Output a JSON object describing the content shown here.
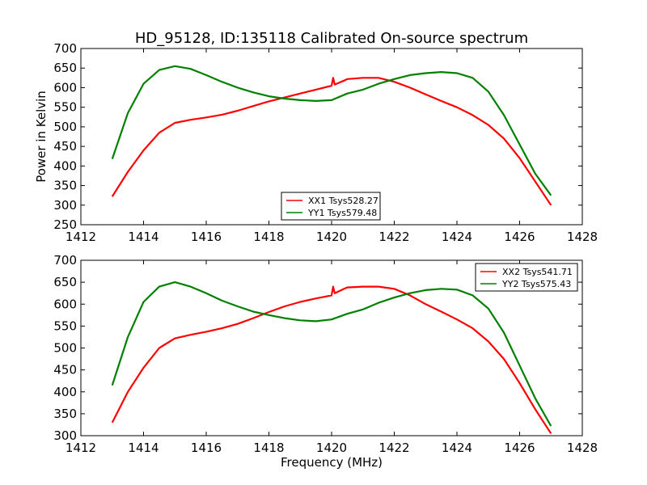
{
  "figure": {
    "title": "HD_95128, ID:135118 Calibrated On-source spectrum",
    "background": "#ffffff"
  },
  "chart_data": [
    {
      "type": "line",
      "title": "HD_95128, ID:135118 Calibrated On-source spectrum",
      "xlabel": "",
      "ylabel": "Power in Kelvin",
      "xlim": [
        1412,
        1428
      ],
      "ylim": [
        250,
        700
      ],
      "xticks": [
        "1412",
        "1414",
        "1416",
        "1418",
        "1420",
        "1422",
        "1424",
        "1426",
        "1428"
      ],
      "yticks": [
        "250",
        "300",
        "350",
        "400",
        "450",
        "500",
        "550",
        "600",
        "650",
        "700"
      ],
      "grid": false,
      "legend_position": "lower-center",
      "series": [
        {
          "name": "XX1 Tsys528.27",
          "color": "#ff0000",
          "x": [
            1413.0,
            1413.5,
            1414.0,
            1414.5,
            1415.0,
            1415.5,
            1416.0,
            1416.5,
            1417.0,
            1417.5,
            1418.0,
            1418.5,
            1419.0,
            1419.5,
            1420.0,
            1420.05,
            1420.1,
            1420.4,
            1420.5,
            1421.0,
            1421.5,
            1422.0,
            1422.5,
            1423.0,
            1423.5,
            1424.0,
            1424.5,
            1425.0,
            1425.5,
            1426.0,
            1426.5,
            1427.0
          ],
          "y": [
            322,
            385,
            440,
            485,
            510,
            518,
            524,
            531,
            541,
            553,
            565,
            575,
            585,
            595,
            605,
            625,
            608,
            618,
            622,
            625,
            625,
            615,
            600,
            583,
            566,
            550,
            530,
            505,
            470,
            420,
            360,
            300
          ]
        },
        {
          "name": "YY1 Tsys579.48",
          "color": "#008000",
          "x": [
            1413.0,
            1413.5,
            1414.0,
            1414.5,
            1415.0,
            1415.5,
            1416.0,
            1416.5,
            1417.0,
            1417.5,
            1418.0,
            1418.5,
            1419.0,
            1419.5,
            1420.0,
            1420.5,
            1421.0,
            1421.5,
            1422.0,
            1422.5,
            1423.0,
            1423.5,
            1424.0,
            1424.5,
            1425.0,
            1425.5,
            1426.0,
            1426.5,
            1427.0
          ],
          "y": [
            418,
            535,
            610,
            645,
            655,
            648,
            632,
            615,
            600,
            588,
            578,
            572,
            568,
            566,
            568,
            585,
            595,
            610,
            622,
            632,
            637,
            640,
            637,
            625,
            590,
            530,
            455,
            380,
            325
          ]
        }
      ]
    },
    {
      "type": "line",
      "title": "",
      "xlabel": "Frequency (MHz)",
      "ylabel": "",
      "xlim": [
        1412,
        1428
      ],
      "ylim": [
        300,
        700
      ],
      "xticks": [
        "1412",
        "1414",
        "1416",
        "1418",
        "1420",
        "1422",
        "1424",
        "1426",
        "1428"
      ],
      "yticks": [
        "300",
        "350",
        "400",
        "450",
        "500",
        "550",
        "600",
        "650",
        "700"
      ],
      "grid": false,
      "legend_position": "top-right",
      "series": [
        {
          "name": "XX2 Tsys541.71",
          "color": "#ff0000",
          "x": [
            1413.0,
            1413.5,
            1414.0,
            1414.5,
            1415.0,
            1415.5,
            1416.0,
            1416.5,
            1417.0,
            1417.5,
            1418.0,
            1418.5,
            1419.0,
            1419.5,
            1420.0,
            1420.05,
            1420.1,
            1420.4,
            1420.5,
            1421.0,
            1421.5,
            1422.0,
            1422.5,
            1423.0,
            1423.5,
            1424.0,
            1424.5,
            1425.0,
            1425.5,
            1426.0,
            1426.5,
            1427.0
          ],
          "y": [
            330,
            400,
            455,
            500,
            522,
            530,
            537,
            545,
            555,
            568,
            582,
            595,
            605,
            613,
            620,
            640,
            625,
            635,
            638,
            640,
            640,
            635,
            620,
            600,
            583,
            565,
            545,
            515,
            475,
            420,
            360,
            305
          ]
        },
        {
          "name": "YY2 Tsys575.43",
          "color": "#008000",
          "x": [
            1413.0,
            1413.5,
            1414.0,
            1414.5,
            1415.0,
            1415.5,
            1416.0,
            1416.5,
            1417.0,
            1417.5,
            1418.0,
            1418.5,
            1419.0,
            1419.5,
            1420.0,
            1420.5,
            1421.0,
            1421.5,
            1422.0,
            1422.5,
            1423.0,
            1423.5,
            1424.0,
            1424.5,
            1425.0,
            1425.5,
            1426.0,
            1426.5,
            1427.0
          ],
          "y": [
            415,
            525,
            605,
            640,
            650,
            640,
            625,
            608,
            595,
            583,
            575,
            568,
            563,
            561,
            565,
            578,
            588,
            603,
            615,
            625,
            632,
            635,
            633,
            620,
            590,
            535,
            460,
            385,
            322
          ]
        }
      ]
    }
  ]
}
